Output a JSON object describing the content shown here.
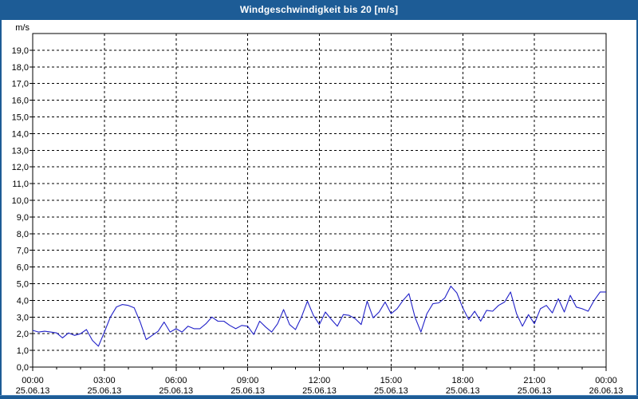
{
  "window": {
    "title": "Windgeschwindigkeit bis 20 [m/s]"
  },
  "colors": {
    "chrome": "#1d5c96",
    "background": "#ffffff",
    "plot_border": "#000000",
    "grid": "#000000",
    "text": "#000000",
    "title_text": "#ffffff",
    "line": "#2121c8"
  },
  "chart_data": {
    "type": "line",
    "title": "Windgeschwindigkeit bis 20 [m/s]",
    "legend": "none",
    "grid": "dashed",
    "y_axis": {
      "unit_label": "m/s",
      "min": 0,
      "max": 20,
      "tick_step": 1,
      "tick_labels": [
        "0,0",
        "1,0",
        "2,0",
        "3,0",
        "4,0",
        "5,0",
        "6,0",
        "7,0",
        "8,0",
        "9,0",
        "10,0",
        "11,0",
        "12,0",
        "13,0",
        "14,0",
        "15,0",
        "16,0",
        "17,0",
        "18,0",
        "19,0"
      ]
    },
    "x_axis": {
      "range_hours": 24,
      "minor_tick_hours": 1,
      "major_tick_hours": 3,
      "major_ticks": [
        {
          "time": "00:00",
          "date": "25.06.13"
        },
        {
          "time": "03:00",
          "date": "25.06.13"
        },
        {
          "time": "06:00",
          "date": "25.06.13"
        },
        {
          "time": "09:00",
          "date": "25.06.13"
        },
        {
          "time": "12:00",
          "date": "25.06.13"
        },
        {
          "time": "15:00",
          "date": "25.06.13"
        },
        {
          "time": "18:00",
          "date": "25.06.13"
        },
        {
          "time": "21:00",
          "date": "25.06.13"
        },
        {
          "time": "00:00",
          "date": "26.06.13"
        }
      ]
    },
    "series": [
      {
        "name": "Windgeschwindigkeit",
        "unit": "m/s",
        "start": "25.06.13 00:00",
        "end": "26.06.13 00:00",
        "interval_minutes": 15,
        "values": [
          2.2,
          2.1,
          2.15,
          2.1,
          2.05,
          1.75,
          2.05,
          1.9,
          2.0,
          2.25,
          1.6,
          1.25,
          2.1,
          3.0,
          3.6,
          3.75,
          3.7,
          3.55,
          2.7,
          1.65,
          1.9,
          2.15,
          2.7,
          2.1,
          2.3,
          2.1,
          2.45,
          2.3,
          2.3,
          2.6,
          3.0,
          2.75,
          2.75,
          2.5,
          2.3,
          2.5,
          2.45,
          1.95,
          2.75,
          2.4,
          2.1,
          2.6,
          3.45,
          2.55,
          2.25,
          3.0,
          3.95,
          3.1,
          2.55,
          3.3,
          2.85,
          2.45,
          3.15,
          3.1,
          2.9,
          2.55,
          3.95,
          2.95,
          3.3,
          3.9,
          3.2,
          3.5,
          4.0,
          4.4,
          3.0,
          2.1,
          3.2,
          3.8,
          3.85,
          4.15,
          4.85,
          4.45,
          3.55,
          2.85,
          3.35,
          2.75,
          3.4,
          3.35,
          3.7,
          3.9,
          4.5,
          3.2,
          2.45,
          3.15,
          2.6,
          3.5,
          3.7,
          3.25,
          4.1,
          3.3,
          4.3,
          3.6,
          3.5,
          3.35,
          4.0,
          4.5,
          4.5
        ]
      }
    ]
  }
}
